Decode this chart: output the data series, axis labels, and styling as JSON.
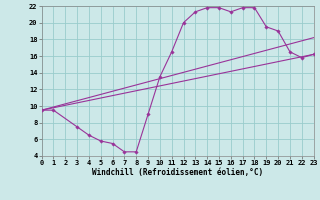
{
  "xlabel": "Windchill (Refroidissement éolien,°C)",
  "xlim": [
    0,
    23
  ],
  "ylim": [
    4,
    22
  ],
  "yticks": [
    4,
    6,
    8,
    10,
    12,
    14,
    16,
    18,
    20,
    22
  ],
  "xticks": [
    0,
    1,
    2,
    3,
    4,
    5,
    6,
    7,
    8,
    9,
    10,
    11,
    12,
    13,
    14,
    15,
    16,
    17,
    18,
    19,
    20,
    21,
    22,
    23
  ],
  "bg_color": "#cce8e8",
  "grid_color": "#99cccc",
  "line_color": "#993399",
  "curve_x": [
    0,
    1,
    3,
    4,
    5,
    6,
    7,
    8,
    9,
    10,
    11,
    12,
    13,
    14,
    15,
    16,
    17,
    18,
    19,
    20,
    21,
    22,
    23
  ],
  "curve_y": [
    9.5,
    9.5,
    7.5,
    6.5,
    5.8,
    5.5,
    4.5,
    4.5,
    9.0,
    13.5,
    16.5,
    20.0,
    21.3,
    21.8,
    21.8,
    21.3,
    21.8,
    21.8,
    19.5,
    19.0,
    16.5,
    15.8,
    16.2
  ],
  "line2_x": [
    0,
    23
  ],
  "line2_y": [
    9.5,
    16.2
  ],
  "line3_x": [
    0,
    23
  ],
  "line3_y": [
    9.5,
    18.2
  ]
}
